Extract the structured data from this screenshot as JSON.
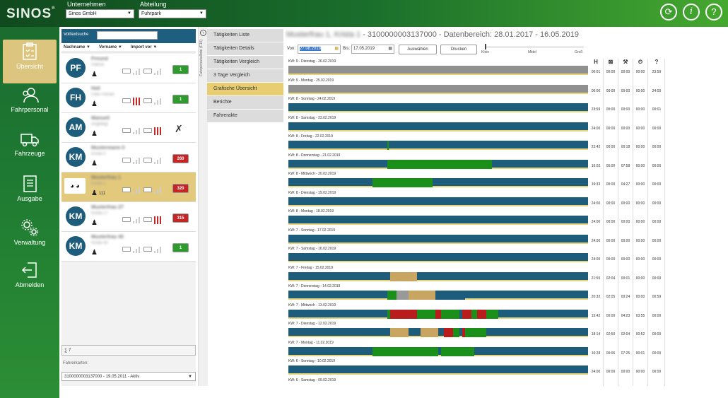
{
  "app": {
    "logo": "SINOS"
  },
  "header": {
    "company_label": "Unternehmen",
    "company_value": "Sinos GmbH",
    "dept_label": "Abteilung",
    "dept_value": "Fuhrpark"
  },
  "sidebar": {
    "items": [
      {
        "label": "Übersicht"
      },
      {
        "label": "Fahrpersonal"
      },
      {
        "label": "Fahrzeuge"
      },
      {
        "label": "Ausgabe"
      },
      {
        "label": "Verwaltung"
      },
      {
        "label": "Abmelden"
      }
    ]
  },
  "drivers_panel": {
    "search_label": "Volltextsuche",
    "columns": [
      "Nachname",
      "Vorname",
      "Import vor"
    ],
    "drivers": [
      {
        "initials": "PF",
        "name": "Freund",
        "sub": "Patrick",
        "badge": "1",
        "badge_color": "green"
      },
      {
        "initials": "FH",
        "name": "Hall",
        "sub": "Felix Florian",
        "badge": "1",
        "badge_color": "green"
      },
      {
        "initials": "AM",
        "name": "Manuell",
        "sub": "Angelegt",
        "badge": "",
        "badge_color": ""
      },
      {
        "initials": "KM",
        "name": "Mustermann 0",
        "sub": "Krista 0",
        "badge": "260",
        "badge_color": "red"
      },
      {
        "initials": "",
        "name": "Musterfrau 1",
        "sub": "Krista 1",
        "badge": "320",
        "badge_color": "red",
        "count": "111"
      },
      {
        "initials": "KM",
        "name": "Musterfrau 27",
        "sub": "Krista 27",
        "badge": "315",
        "badge_color": "red"
      },
      {
        "initials": "KM",
        "name": "Musterfrau 40",
        "sub": "Krista 40",
        "badge": "1",
        "badge_color": "green"
      }
    ],
    "footer_sum": "∑ 7",
    "cards_label": "Fahrerkarten:",
    "card_value": "3100000003137000 - 19.05.2011 - Aktiv"
  },
  "divider": {
    "vertical_text": "Fahrpersonalliste (F10)"
  },
  "menu": {
    "items": [
      "Tätigkeiten Liste",
      "Tätigkeiten Details",
      "Tätigkeiten Vergleich",
      "3 Tage Vergleich",
      "Grafische Übersicht",
      "Berichte",
      "Fahrerakte"
    ],
    "active": 4
  },
  "main": {
    "title_name": "Musterfrau 1, Krista 1",
    "title_rest": " - 3100000003137000 - Datenbereich: 28.01.2017 - 16.05.2019",
    "von_label": "Von:",
    "von_value": "27.08.2018",
    "bis_label": "Bis:",
    "bis_value": "17.05.2019",
    "select_btn": "Auswählen",
    "print_btn": "Drucken",
    "zoom_labels": [
      "Klein",
      "Mittel",
      "Groß"
    ],
    "zoom_value": 0
  },
  "stats_header": [
    "H",
    "⊠",
    "⚒",
    "⏲",
    "?"
  ],
  "timeline": [
    {
      "label": "KW: 9 - Dienstag - 26.02.2019",
      "grey": true,
      "segs": [],
      "stats": [
        "00:01",
        "00:00",
        "00:00",
        "00:00",
        "23:59"
      ]
    },
    {
      "label": "KW: 9 - Montag - 25.02.2019",
      "grey": true,
      "segs": [],
      "stats": [
        "00:00",
        "00:00",
        "00:00",
        "00:00",
        "24:00"
      ]
    },
    {
      "label": "KW: 8 - Sonntag - 24.02.2019",
      "grey": false,
      "segs": [],
      "stats": [
        "23:59",
        "00:00",
        "00:00",
        "00:00",
        "00:01"
      ]
    },
    {
      "label": "KW: 8 - Samstag - 23.02.2019",
      "grey": false,
      "segs": [],
      "stats": [
        "24:00",
        "00:00",
        "00:00",
        "00:00",
        "00:00"
      ]
    },
    {
      "label": "KW: 8 - Freitag - 22.02.2019",
      "grey": false,
      "segs": [
        {
          "s": 0.33,
          "e": 0.335,
          "c": "#1a8f1a"
        }
      ],
      "stats": [
        "23:42",
        "00:00",
        "00:18",
        "00:00",
        "00:00"
      ]
    },
    {
      "label": "KW: 8 - Donnerstag - 21.02.2019",
      "grey": false,
      "segs": [
        {
          "s": 0.33,
          "e": 0.68,
          "c": "#1a8f1a"
        }
      ],
      "stats": [
        "16:02",
        "00:00",
        "07:58",
        "00:00",
        "00:00"
      ]
    },
    {
      "label": "KW: 8 - Mittwoch - 20.02.2019",
      "grey": false,
      "segs": [
        {
          "s": 0.28,
          "e": 0.48,
          "c": "#1a8f1a"
        }
      ],
      "stats": [
        "19:33",
        "00:00",
        "04:27",
        "00:00",
        "00:00"
      ]
    },
    {
      "label": "KW: 8 - Dienstag - 19.02.2019",
      "grey": false,
      "segs": [],
      "stats": [
        "24:00",
        "00:00",
        "00:00",
        "00:00",
        "00:00"
      ]
    },
    {
      "label": "KW: 8 - Montag - 18.02.2019",
      "grey": false,
      "segs": [],
      "stats": [
        "24:00",
        "00:00",
        "00:00",
        "00:00",
        "00:00"
      ]
    },
    {
      "label": "KW: 7 - Sonntag - 17.02.2019",
      "grey": false,
      "segs": [],
      "stats": [
        "24:00",
        "00:00",
        "00:00",
        "00:00",
        "00:00"
      ]
    },
    {
      "label": "KW: 7 - Samstag - 16.02.2019",
      "grey": false,
      "segs": [],
      "stats": [
        "24:00",
        "00:00",
        "00:00",
        "00:00",
        "00:00"
      ]
    },
    {
      "label": "KW: 7 - Freitag - 15.02.2019",
      "grey": false,
      "segs": [
        {
          "s": 0.34,
          "e": 0.43,
          "c": "#c8a560"
        }
      ],
      "stats": [
        "21:55",
        "02:04",
        "00:01",
        "00:00",
        "00:00"
      ]
    },
    {
      "label": "KW: 7 - Donnerstag - 14.02.2019",
      "grey": false,
      "segs": [
        {
          "s": 0.33,
          "e": 0.36,
          "c": "#1a8f1a"
        },
        {
          "s": 0.36,
          "e": 0.4,
          "c": "#999999"
        },
        {
          "s": 0.4,
          "e": 0.49,
          "c": "#c8a560"
        },
        {
          "s": 0.49,
          "e": 0.59,
          "c": "#1d5c7a"
        }
      ],
      "stats": [
        "20:32",
        "02:05",
        "00:24",
        "00:00",
        "00:59"
      ]
    },
    {
      "label": "KW: 7 - Mittwoch - 13.02.2019",
      "grey": false,
      "segs": [
        {
          "s": 0.33,
          "e": 0.34,
          "c": "#1a8f1a"
        },
        {
          "s": 0.34,
          "e": 0.43,
          "c": "#b81c1c"
        },
        {
          "s": 0.43,
          "e": 0.49,
          "c": "#1a8f1a"
        },
        {
          "s": 0.49,
          "e": 0.51,
          "c": "#b81c1c"
        },
        {
          "s": 0.51,
          "e": 0.57,
          "c": "#1a8f1a"
        },
        {
          "s": 0.57,
          "e": 0.58,
          "c": "#1d5c7a"
        },
        {
          "s": 0.58,
          "e": 0.61,
          "c": "#b81c1c"
        },
        {
          "s": 0.61,
          "e": 0.63,
          "c": "#1a8f1a"
        },
        {
          "s": 0.63,
          "e": 0.66,
          "c": "#b81c1c"
        },
        {
          "s": 0.66,
          "e": 0.7,
          "c": "#1a8f1a"
        }
      ],
      "stats": [
        "15:42",
        "00:00",
        "04:23",
        "03:55",
        "00:00"
      ]
    },
    {
      "label": "KW: 7 - Dienstag - 12.02.2019",
      "grey": false,
      "segs": [
        {
          "s": 0.34,
          "e": 0.4,
          "c": "#c8a560"
        },
        {
          "s": 0.44,
          "e": 0.5,
          "c": "#c8a560"
        },
        {
          "s": 0.52,
          "e": 0.55,
          "c": "#b81c1c"
        },
        {
          "s": 0.55,
          "e": 0.57,
          "c": "#1a8f1a"
        },
        {
          "s": 0.58,
          "e": 0.59,
          "c": "#b81c1c"
        },
        {
          "s": 0.59,
          "e": 0.66,
          "c": "#1a8f1a"
        }
      ],
      "stats": [
        "18:14",
        "02:50",
        "02:04",
        "00:52",
        "00:00"
      ]
    },
    {
      "label": "KW: 7 - Montag - 11.02.2019",
      "grey": false,
      "segs": [
        {
          "s": 0.28,
          "e": 0.5,
          "c": "#1a8f1a"
        },
        {
          "s": 0.51,
          "e": 0.62,
          "c": "#1a8f1a"
        }
      ],
      "stats": [
        "16:28",
        "00:06",
        "07:25",
        "00:01",
        "00:00"
      ]
    },
    {
      "label": "KW: 6 - Sonntag - 10.02.2019",
      "grey": false,
      "segs": [],
      "stats": [
        "24:00",
        "00:00",
        "00:00",
        "00:00",
        "00:00"
      ]
    },
    {
      "label": "KW: 6 - Samstag - 09.02.2019",
      "grey": false,
      "segs": [],
      "stats": []
    }
  ]
}
